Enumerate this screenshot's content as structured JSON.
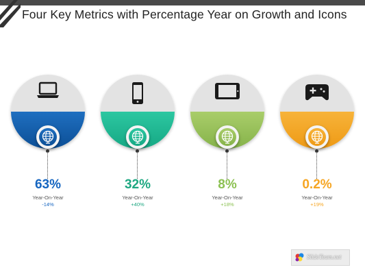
{
  "title": "Four Key Metrics with Percentage Year on Growth and Icons",
  "colors": {
    "blue": "#1565c0",
    "teal": "#1fb892",
    "green": "#8cc152",
    "orange": "#f6a623"
  },
  "metrics": [
    {
      "icon": "laptop-icon",
      "percent": "63%",
      "caption": "Year-On-Year",
      "change": "-14%",
      "color": "#1565c0"
    },
    {
      "icon": "smartphone-icon",
      "percent": "32%",
      "caption": "Year-On-Year",
      "change": "+40%",
      "color": "#1fb892"
    },
    {
      "icon": "tablet-icon",
      "percent": "8%",
      "caption": "Year-On-Year",
      "change": "+18%",
      "color": "#8cc152"
    },
    {
      "icon": "gamepad-icon",
      "percent": "0.2%",
      "caption": "Year-On-Year",
      "change": "+19%",
      "color": "#f6a623"
    }
  ],
  "watermark": {
    "text": "SlideTeam.net"
  }
}
